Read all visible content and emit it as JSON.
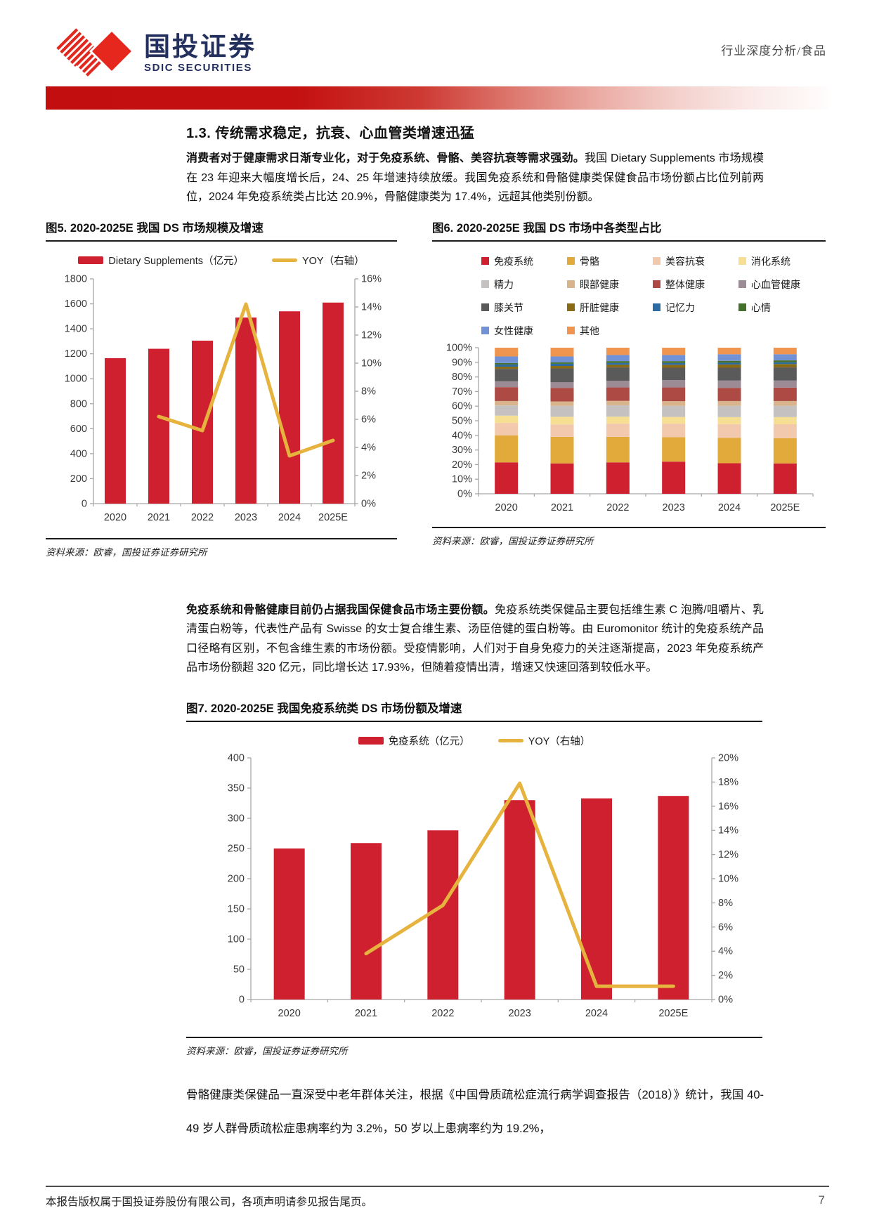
{
  "header": {
    "logo_cn": "国投证券",
    "logo_en": "SDIC SECURITIES",
    "doc_type": "行业深度分析/食品"
  },
  "section": {
    "heading": "1.3. 传统需求稳定，抗衰、心血管类增速迅猛",
    "para1_bold": "消费者对于健康需求日渐专业化，对于免疫系统、骨骼、美容抗衰等需求强劲。",
    "para1_rest": "我国 Dietary Supplements 市场规模在 23 年迎来大幅度增长后，24、25 年增速持续放缓。我国免疫系统和骨骼健康类保健食品市场份额占比位列前两位，2024 年免疫系统类占比达 20.9%，骨骼健康类为 17.4%，远超其他类别份额。",
    "para2_bold": "免疫系统和骨骼健康目前仍占据我国保健食品市场主要份额。",
    "para2_rest": "免疫系统类保健品主要包括维生素 C 泡腾/咀嚼片、乳清蛋白粉等，代表性产品有 Swisse 的女士复合维生素、汤臣倍健的蛋白粉等。由 Euromonitor 统计的免疫系统产品口径略有区别，不包含维生素的市场份额。受疫情影响，人们对于自身免疫力的关注逐渐提高，2023 年免疫系统产品市场份额超 320 亿元，同比增长达 17.93%，但随着疫情出清，增速又快速回落到较低水平。",
    "para3": "骨骼健康类保健品一直深受中老年群体关注，根据《中国骨质疏松症流行病学调查报告（2018）》统计，我国 40-49 岁人群骨质疏松症患病率约为 3.2%，50 岁以上患病率约为 19.2%，"
  },
  "chart_data": [
    {
      "id": "fig5",
      "type": "bar+line",
      "title": "图5. 2020-2025E 我国 DS 市场规模及增速",
      "categories": [
        "2020",
        "2021",
        "2022",
        "2023",
        "2024",
        "2025E"
      ],
      "series": [
        {
          "name": "Dietary Supplements（亿元）",
          "type": "bar",
          "axis": "left",
          "color": "#cf2030",
          "values": [
            1165,
            1240,
            1305,
            1490,
            1540,
            1610
          ]
        },
        {
          "name": "YOY（右轴）",
          "type": "line",
          "axis": "right",
          "color": "#e6b43e",
          "values": [
            null,
            6.2,
            5.2,
            14.2,
            3.4,
            4.5
          ]
        }
      ],
      "left_axis": {
        "min": 0,
        "max": 1800,
        "step": 200,
        "format": "int"
      },
      "right_axis": {
        "min": 0,
        "max": 16,
        "step": 2,
        "format": "pct"
      },
      "legend_style": "row",
      "source": "资料来源：欧睿，国投证券证券研究所"
    },
    {
      "id": "fig6",
      "type": "stacked-bar-100",
      "title": "图6. 2020-2025E 我国 DS 市场中各类型占比",
      "categories": [
        "2020",
        "2021",
        "2022",
        "2023",
        "2024",
        "2025E"
      ],
      "stacked": true,
      "series": [
        {
          "name": "免疫系统",
          "type": "bar",
          "color": "#cf2030",
          "values": [
            21.5,
            20.8,
            21.5,
            22.0,
            20.9,
            20.8
          ]
        },
        {
          "name": "骨骼",
          "type": "bar",
          "color": "#e2a93b",
          "values": [
            18.5,
            18.2,
            17.5,
            16.8,
            17.4,
            17.2
          ]
        },
        {
          "name": "美容抗衰",
          "type": "bar",
          "color": "#f2c9ad",
          "values": [
            8.5,
            8.5,
            9.0,
            9.2,
            9.4,
            9.6
          ]
        },
        {
          "name": "消化系统",
          "type": "bar",
          "color": "#f6df92",
          "values": [
            5.0,
            5.2,
            4.8,
            4.6,
            4.8,
            4.9
          ]
        },
        {
          "name": "精力",
          "type": "bar",
          "color": "#c6c1c1",
          "values": [
            7.0,
            7.5,
            7.8,
            7.6,
            7.7,
            7.7
          ]
        },
        {
          "name": "眼部健康",
          "type": "bar",
          "color": "#d8b48c",
          "values": [
            3.0,
            3.0,
            3.0,
            3.2,
            3.3,
            3.3
          ]
        },
        {
          "name": "整体健康",
          "type": "bar",
          "color": "#ad4a43",
          "values": [
            9.5,
            9.3,
            9.2,
            9.4,
            9.0,
            9.2
          ]
        },
        {
          "name": "心血管健康",
          "type": "bar",
          "color": "#9c8a94",
          "values": [
            4.0,
            3.8,
            4.5,
            5.0,
            5.0,
            4.8
          ]
        },
        {
          "name": "膝关节",
          "type": "bar",
          "color": "#5a5a5a",
          "values": [
            8.5,
            9.5,
            9.2,
            8.5,
            8.8,
            9.0
          ]
        },
        {
          "name": "肝脏健康",
          "type": "bar",
          "color": "#8a6a12",
          "values": [
            1.5,
            1.7,
            1.8,
            2.0,
            2.2,
            2.3
          ]
        },
        {
          "name": "记忆力",
          "type": "bar",
          "color": "#2d6ba5",
          "values": [
            1.5,
            1.5,
            1.3,
            1.2,
            1.2,
            1.2
          ]
        },
        {
          "name": "心情",
          "type": "bar",
          "color": "#44702c",
          "values": [
            1.0,
            1.0,
            1.2,
            1.3,
            1.3,
            1.3
          ]
        },
        {
          "name": "女性健康",
          "type": "bar",
          "color": "#7292d8",
          "values": [
            4.5,
            4.0,
            4.2,
            4.2,
            4.5,
            4.2
          ]
        },
        {
          "name": "其他",
          "type": "bar",
          "color": "#f0954f",
          "values": [
            6.0,
            6.0,
            5.0,
            5.0,
            4.5,
            4.5
          ]
        }
      ],
      "left_axis": {
        "min": 0,
        "max": 100,
        "step": 10,
        "format": "pct"
      },
      "legend_style": "grid",
      "source": "资料来源：欧睿，国投证券证券研究所"
    },
    {
      "id": "fig7",
      "type": "bar+line",
      "title": "图7. 2020-2025E 我国免疫系统类 DS 市场份额及增速",
      "categories": [
        "2020",
        "2021",
        "2022",
        "2023",
        "2024",
        "2025E"
      ],
      "series": [
        {
          "name": "免疫系统（亿元）",
          "type": "bar",
          "axis": "left",
          "color": "#cf2030",
          "values": [
            250,
            259,
            280,
            330,
            333,
            337
          ]
        },
        {
          "name": "YOY（右轴）",
          "type": "line",
          "axis": "right",
          "color": "#e6b43e",
          "values": [
            null,
            3.8,
            7.8,
            17.9,
            1.1,
            1.1
          ]
        }
      ],
      "left_axis": {
        "min": 0,
        "max": 400,
        "step": 50,
        "format": "int"
      },
      "right_axis": {
        "min": 0,
        "max": 20,
        "step": 2,
        "format": "pct"
      },
      "legend_style": "row",
      "source": "资料来源：欧睿，国投证券证券研究所"
    }
  ],
  "footer": {
    "text": "本报告版权属于国投证券股份有限公司，各项声明请参见报告尾页。",
    "page": "7"
  }
}
